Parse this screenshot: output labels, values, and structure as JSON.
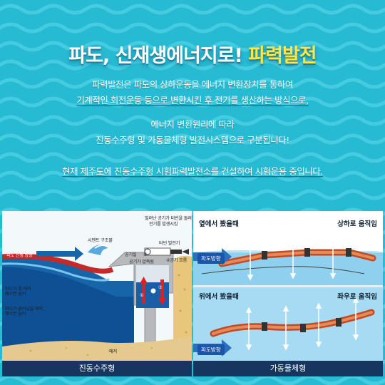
{
  "header": {
    "title_main": "파도, 신재생에너지로!",
    "title_highlight": "파력발전"
  },
  "body_text": {
    "line1": "파력발전은 파도의 상하운동을 에너지 변환장치를 통하여",
    "line2": "기계적인 회전운동 등으로 변환시킨 후 전기를 생산하는 방식으로,",
    "line3": "에너지 변환원리에 따라",
    "line4": "진동수주형 및 가동물체형 발전시스템으로 구분됩니다!",
    "line5": "현재 제주도에 진동수주형 시험파력발전소를 건설하여 시험운용 중입니다."
  },
  "left_diagram": {
    "caption": "진동수주형",
    "labels": {
      "wave_direction": "파도 진행 방향",
      "cement": "시멘트 구조물",
      "air_chamber": "공기실",
      "compressed_air": "공기가 압축됨",
      "turbine_note_1": "밀려난 공기가 터빈을 돌려",
      "turbine_note_2": "전기를 발생시킴",
      "turbine": "터빈 발전기",
      "air_flow": "②공기 흐름",
      "high_level_1": "파도가 칠 때의",
      "high_level_2": "해수면 높이",
      "low_level_1": "파도가 물러났을 때의",
      "low_level_2": "해수면 높이",
      "seabed": "해저",
      "num1": "①",
      "num3": "③",
      "num4": "④"
    }
  },
  "right_diagram": {
    "caption": "가동물체형",
    "top": {
      "view": "옆에서 봤을때",
      "motion": "상하로 움직임",
      "direction": "파도방향"
    },
    "bottom": {
      "view": "위에서 봤을때",
      "motion": "좌우로 움직임",
      "direction": "파도방향"
    }
  }
}
